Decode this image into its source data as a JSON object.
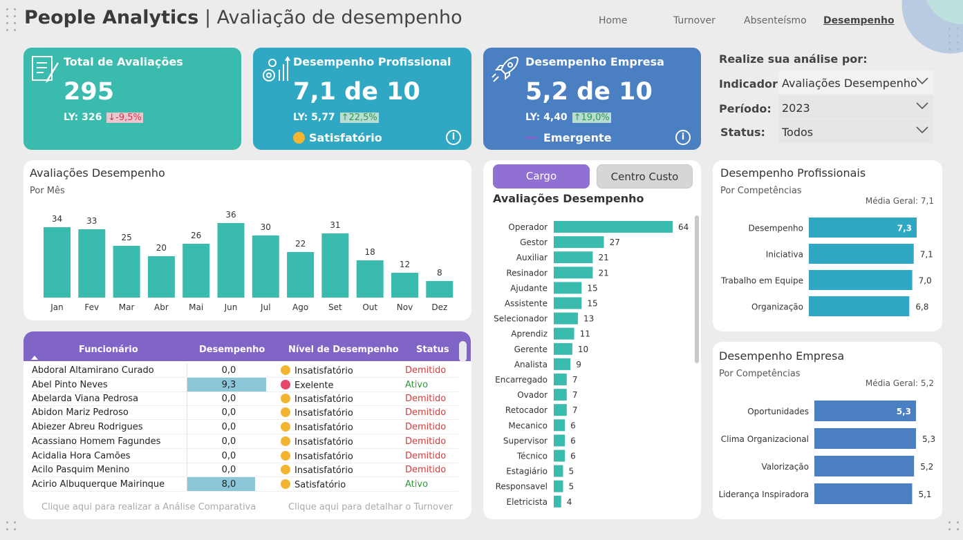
{
  "header": {
    "title_bold": "People Analytics",
    "title_sep": " | ",
    "title_rest": "Avaliação de desempenho",
    "nav": [
      {
        "label": "Home",
        "active": false
      },
      {
        "label": "Turnover",
        "active": false
      },
      {
        "label": "Absenteísmo",
        "active": false
      },
      {
        "label": "Desempenho",
        "active": true
      }
    ]
  },
  "kpis": [
    {
      "title": "Total de Avaliações",
      "value": "295",
      "ly_label": "LY: 326",
      "change": "↓-9,5%",
      "dir": "down",
      "level": "",
      "color": "#3bbbae",
      "icon": "checklist-icon"
    },
    {
      "title": "Desempenho Profissional",
      "value": "7,1 de 10",
      "ly_label": "LY: 5,77",
      "change": "↑22,5%",
      "dir": "up",
      "level": "Satisfatório",
      "color": "#31a8c3",
      "icon": "gears-growth-icon"
    },
    {
      "title": "Desempenho Empresa",
      "value": "5,2 de 10",
      "ly_label": "LY: 4,40",
      "change": "↑19,0%",
      "dir": "up",
      "level": "Emergente",
      "color": "#4a7fc1",
      "icon": "rocket-icon"
    }
  ],
  "filters": {
    "title": "Realize sua análise por:",
    "items": [
      {
        "label": "Indicador:",
        "value": "Avaliações Desempenho"
      },
      {
        "label": "Período:",
        "value": "2023"
      },
      {
        "label": "Status:",
        "value": "Todos"
      }
    ]
  },
  "monthly": {
    "title": "Avaliações Desempenho",
    "subtitle": "Por Mês"
  },
  "cargo": {
    "tabs": [
      "Cargo",
      "Centro Custo"
    ],
    "title": "Avaliações Desempenho"
  },
  "prof": {
    "title": "Desempenho Profissionais",
    "subtitle": "Por Competências",
    "media": "Média Geral: 7,1"
  },
  "emp": {
    "title": "Desempenho Empresa",
    "subtitle": "Por Competências",
    "media": "Média Geral: 5,2"
  },
  "table": {
    "headers": [
      "Funcionário",
      "Desempenho",
      "Nível de Desempenho",
      "Status"
    ],
    "rows": [
      {
        "name": "Abdoral Altamirano Curado",
        "score": "0,0",
        "score_value": 0.0,
        "level": "Insatisfatório",
        "status": "Demitido"
      },
      {
        "name": "Abel Pinto Neves",
        "score": "9,3",
        "score_value": 9.3,
        "level": "Exelente",
        "status": "Ativo"
      },
      {
        "name": "Abelarda Viana Pedrosa",
        "score": "0,0",
        "score_value": 0.0,
        "level": "Insatisfatório",
        "status": "Demitido"
      },
      {
        "name": "Abidon Mariz Pedroso",
        "score": "0,0",
        "score_value": 0.0,
        "level": "Insatisfatório",
        "status": "Demitido"
      },
      {
        "name": "Abiezer Abreu Rodrigues",
        "score": "0,0",
        "score_value": 0.0,
        "level": "Insatisfatório",
        "status": "Demitido"
      },
      {
        "name": "Acassiano Homem Fagundes",
        "score": "0,0",
        "score_value": 0.0,
        "level": "Insatisfatório",
        "status": "Demitido"
      },
      {
        "name": "Acidalia Hora Camões",
        "score": "0,0",
        "score_value": 0.0,
        "level": "Insatisfatório",
        "status": "Demitido"
      },
      {
        "name": "Acilo Pasquim Menino",
        "score": "0,0",
        "score_value": 0.0,
        "level": "Insatisfatório",
        "status": "Demitido"
      },
      {
        "name": "Acirio Albuquerque Mairinque",
        "score": "8,0",
        "score_value": 8.0,
        "level": "Satisfatório",
        "status": "Ativo"
      }
    ],
    "link_left": "Clique aqui para realizar a Análise Comparativa",
    "link_right": "Clique aqui para detalhar o Turnover"
  },
  "chart_data": [
    {
      "type": "bar",
      "title": "Avaliações Desempenho",
      "subtitle": "Por Mês",
      "categories": [
        "Jan",
        "Fev",
        "Mar",
        "Abr",
        "Mai",
        "Jun",
        "Jul",
        "Ago",
        "Set",
        "Out",
        "Nov",
        "Dez"
      ],
      "values": [
        34,
        33,
        25,
        20,
        26,
        36,
        30,
        22,
        31,
        18,
        12,
        8
      ],
      "color": "#3bbbae"
    },
    {
      "type": "bar",
      "orientation": "horizontal",
      "title": "Avaliações Desempenho",
      "categories": [
        "Operador",
        "Gestor",
        "Auxiliar",
        "Resinador",
        "Ajudante",
        "Assistente",
        "Selecionador",
        "Aprendiz",
        "Gerente",
        "Analista",
        "Encarregado",
        "Ovador",
        "Retocador",
        "Mecanico",
        "Supervisor",
        "Técnico",
        "Estagiário",
        "Responsavel",
        "Eletricista"
      ],
      "values": [
        64,
        27,
        21,
        21,
        15,
        15,
        13,
        11,
        10,
        9,
        7,
        7,
        7,
        6,
        6,
        6,
        5,
        5,
        4
      ],
      "color": "#3bbbae"
    },
    {
      "type": "bar",
      "orientation": "horizontal",
      "title": "Desempenho Profissionais",
      "subtitle": "Por Competências",
      "categories": [
        "Desempenho",
        "Iniciativa",
        "Trabalho em Equipe",
        "Organização"
      ],
      "values": [
        7.3,
        7.1,
        7.0,
        6.8
      ],
      "labels": [
        "7,3",
        "7,1",
        "7,0",
        "6,8"
      ],
      "color": "#31a8c3"
    },
    {
      "type": "bar",
      "orientation": "horizontal",
      "title": "Desempenho Empresa",
      "subtitle": "Por Competências",
      "categories": [
        "Oportunidades",
        "Clima Organizacional",
        "Valorização",
        "Liderança Inspiradora"
      ],
      "values": [
        5.3,
        5.3,
        5.2,
        5.1
      ],
      "labels": [
        "5,3",
        "5,3",
        "5,2",
        "5,1"
      ],
      "color": "#4a7fc1"
    }
  ]
}
